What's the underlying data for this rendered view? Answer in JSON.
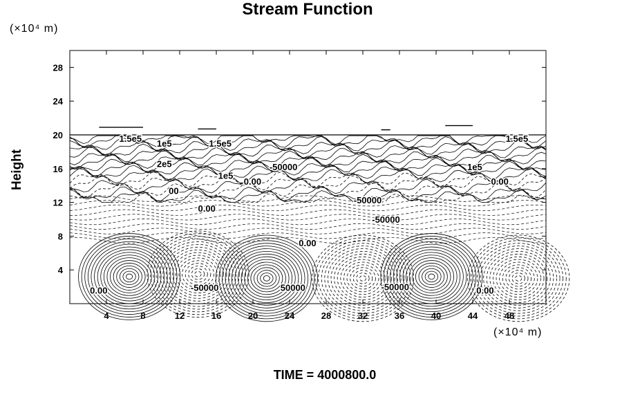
{
  "chart_data": {
    "type": "contour",
    "title": "Stream Function",
    "ylabel": "Height",
    "xlabel": "",
    "x_unit_label": "(×10⁴ m)",
    "y_unit_label": "(×10⁴ m)",
    "xlim": [
      0,
      52
    ],
    "ylim": [
      0,
      30
    ],
    "x_ticks": [
      4,
      8,
      12,
      16,
      20,
      24,
      28,
      32,
      36,
      40,
      44,
      48
    ],
    "y_ticks": [
      4,
      8,
      12,
      16,
      20,
      24,
      28
    ],
    "negative_contours": "dashed",
    "positive_contours": "solid",
    "contour_labels": [
      {
        "text": "1.5e5",
        "x": 5.4,
        "y": 19.2
      },
      {
        "text": "1e5",
        "x": 9.5,
        "y": 18.6
      },
      {
        "text": "1.5e5",
        "x": 15.2,
        "y": 18.6
      },
      {
        "text": "2e5",
        "x": 9.5,
        "y": 16.2
      },
      {
        "text": "00",
        "x": 10.8,
        "y": 13.0
      },
      {
        "text": "1e5",
        "x": 16.2,
        "y": 14.8
      },
      {
        "text": "0.00",
        "x": 19.0,
        "y": 14.1
      },
      {
        "text": "-50000",
        "x": 21.8,
        "y": 15.8
      },
      {
        "text": "0.00",
        "x": 14.0,
        "y": 10.9
      },
      {
        "text": "-50000",
        "x": 31.0,
        "y": 11.9
      },
      {
        "text": "-50000",
        "x": 33.0,
        "y": 9.6
      },
      {
        "text": "1e5",
        "x": 43.4,
        "y": 15.8
      },
      {
        "text": "0.00",
        "x": 46.0,
        "y": 14.1
      },
      {
        "text": "1.5e5",
        "x": 47.6,
        "y": 19.2
      },
      {
        "text": "0.00",
        "x": 25.0,
        "y": 6.8
      },
      {
        "text": "0.00",
        "x": 2.2,
        "y": 1.2
      },
      {
        "text": "-50000",
        "x": 13.2,
        "y": 1.5
      },
      {
        "text": "50000",
        "x": 23.0,
        "y": 1.5
      },
      {
        "text": "-50000",
        "x": 34.0,
        "y": 1.6
      },
      {
        "text": "0.00",
        "x": 44.4,
        "y": 1.2
      }
    ],
    "positive_centers": [
      {
        "x": 6.5,
        "y": 3.2
      },
      {
        "x": 21.5,
        "y": 3.0
      },
      {
        "x": 39.5,
        "y": 3.2
      }
    ],
    "negative_centers": [
      {
        "x": 14.0,
        "y": 3.5
      },
      {
        "x": 32.0,
        "y": 3.0
      },
      {
        "x": 49.0,
        "y": 3.0
      }
    ]
  },
  "footer": {
    "time_label": "TIME = 4000800.0"
  }
}
